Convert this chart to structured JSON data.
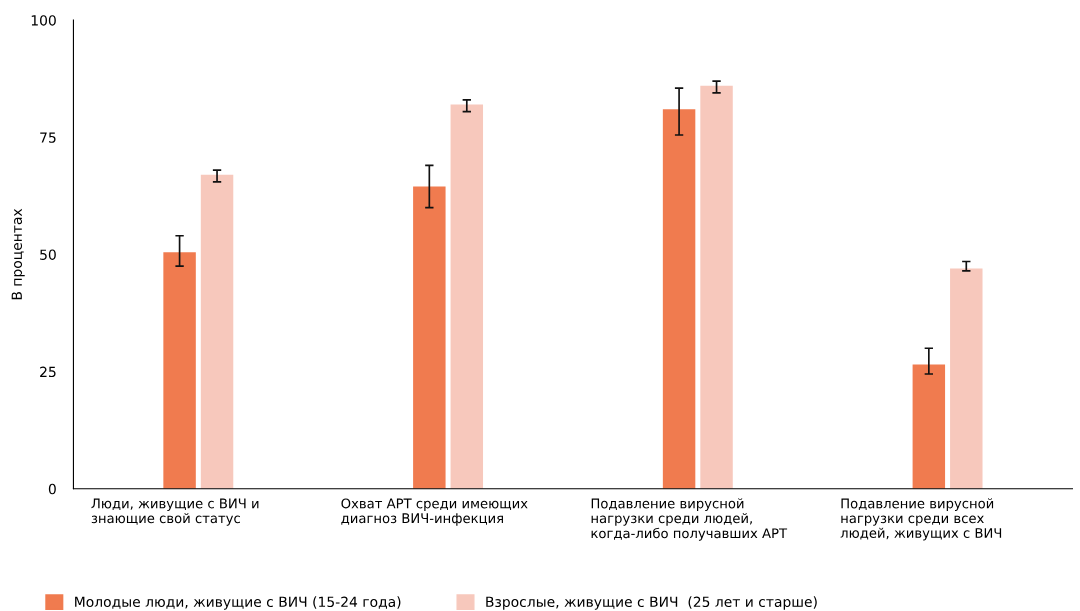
{
  "chart_data": {
    "type": "bar",
    "ylabel": "В процентах",
    "categories": [
      "Люди, живущие с ВИЧ и\nзнающие свой статус",
      "Охват АРТ среди имеющих\nдиагноз ВИЧ-инфекция",
      "Подавление вирусной\nнагрузки среди людей,\nкогда-либо получавших АРТ",
      "Подавление вирусной\nнагрузки среди всех\nлюдей, живущих с ВИЧ"
    ],
    "series": [
      {
        "name": "Молодые люди, живущие с ВИЧ (15-24 года)",
        "color": "#f07b4f",
        "values": [
          50.5,
          64.5,
          81,
          26.5
        ],
        "errors": [
          [
            47.5,
            54
          ],
          [
            60,
            69
          ],
          [
            75.5,
            85.5
          ],
          [
            24.5,
            30
          ]
        ]
      },
      {
        "name": "Взрослые, живущие с ВИЧ  (25 лет и старше)",
        "color": "#f7c8bc",
        "values": [
          67,
          82,
          86,
          47
        ],
        "errors": [
          [
            65.5,
            68
          ],
          [
            80.5,
            83
          ],
          [
            84.5,
            87
          ],
          [
            46.5,
            48.5
          ]
        ]
      }
    ],
    "ylim": [
      0,
      100
    ],
    "yticks": [
      0,
      25,
      50,
      75,
      100
    ],
    "grid": false,
    "legend": "bottom left"
  }
}
